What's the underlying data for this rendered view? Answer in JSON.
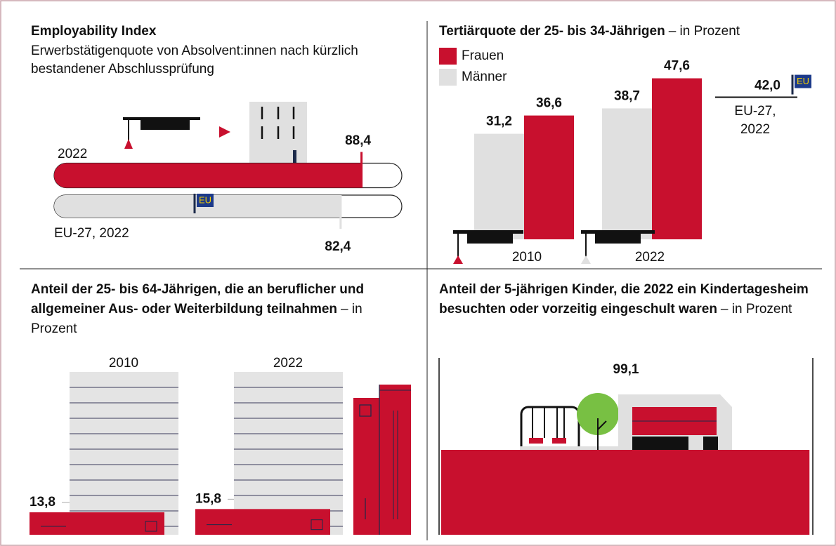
{
  "chart_data": [
    {
      "type": "hbar",
      "title": "Employability Index",
      "subtitle": "Erwerbstätigenquote von Absolvent:innen nach kürzlich bestandener Abschlussprüfung",
      "categories": [
        "2022",
        "EU-27, 2022"
      ],
      "values": [
        88.4,
        82.4
      ],
      "value_labels": [
        "88,4",
        "82,4"
      ],
      "colors": [
        "#c8102e",
        "#e0e0e0"
      ],
      "xlim": [
        0,
        100
      ],
      "badge": "EU"
    },
    {
      "type": "column",
      "title": "Tertiärquote der 25- bis 34-Jährigen",
      "unit": "– in Prozent",
      "categories": [
        "2010",
        "2022"
      ],
      "series": [
        {
          "name": "Frauen",
          "color": "#c8102e",
          "values": [
            36.6,
            47.6
          ],
          "value_labels": [
            "36,6",
            "47,6"
          ]
        },
        {
          "name": "Männer",
          "color": "#e0e0e0",
          "values": [
            31.2,
            38.7
          ],
          "value_labels": [
            "31,2",
            "38,7"
          ]
        }
      ],
      "reference": {
        "label": "EU-27, 2022",
        "value": 42.0,
        "value_label": "42,0",
        "badge": "EU"
      },
      "ylim": [
        0,
        50
      ]
    },
    {
      "type": "pictogram",
      "title": "Anteil der 25- bis 64-Jährigen, die an beruflicher und allgemeiner Aus- oder Weiterbildung teilnahmen",
      "unit": "– in Prozent",
      "categories": [
        "2010",
        "2022"
      ],
      "values": [
        13.8,
        15.8
      ],
      "value_labels": [
        "13,8",
        "15,8"
      ],
      "color": "#c8102e",
      "ylim": [
        0,
        100
      ]
    },
    {
      "type": "area",
      "title": "Anteil der 5-jährigen Kinder, die 2022 ein Kinder­tagesheim besuchten oder vorzeitig eingeschult waren",
      "unit": "– in Prozent",
      "values": [
        99.1
      ],
      "value_labels": [
        "99,1"
      ],
      "color": "#c8102e",
      "xlim": [
        0,
        100
      ]
    }
  ]
}
